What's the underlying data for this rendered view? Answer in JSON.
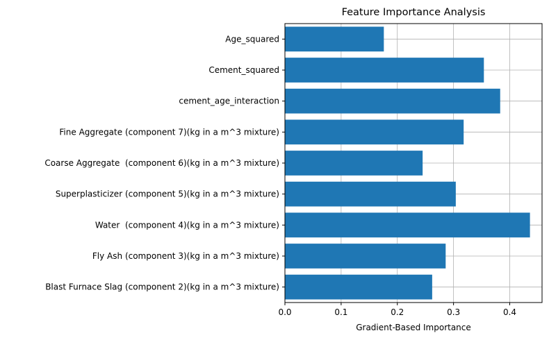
{
  "chart_data": {
    "type": "bar",
    "orientation": "horizontal",
    "title": "Feature Importance Analysis",
    "xlabel": "Gradient-Based Importance",
    "ylabel": "",
    "xlim": [
      0,
      0.4575
    ],
    "xticks": [
      "0.0",
      "0.1",
      "0.2",
      "0.3",
      "0.4"
    ],
    "grid": true,
    "bar_color": "#1f77b4",
    "grid_color": "#b0b0b0",
    "categories": [
      "Blast Furnace Slag (component 2)(kg in a m^3 mixture)",
      "Fly Ash (component 3)(kg in a m^3 mixture)",
      "Water  (component 4)(kg in a m^3 mixture)",
      "Superplasticizer (component 5)(kg in a m^3 mixture)",
      "Coarse Aggregate  (component 6)(kg in a m^3 mixture)",
      "Fine Aggregate (component 7)(kg in a m^3 mixture)",
      "cement_age_interaction",
      "Cement_squared",
      "Age_squared"
    ],
    "values": [
      0.262,
      0.286,
      0.436,
      0.304,
      0.245,
      0.318,
      0.383,
      0.354,
      0.176
    ]
  }
}
